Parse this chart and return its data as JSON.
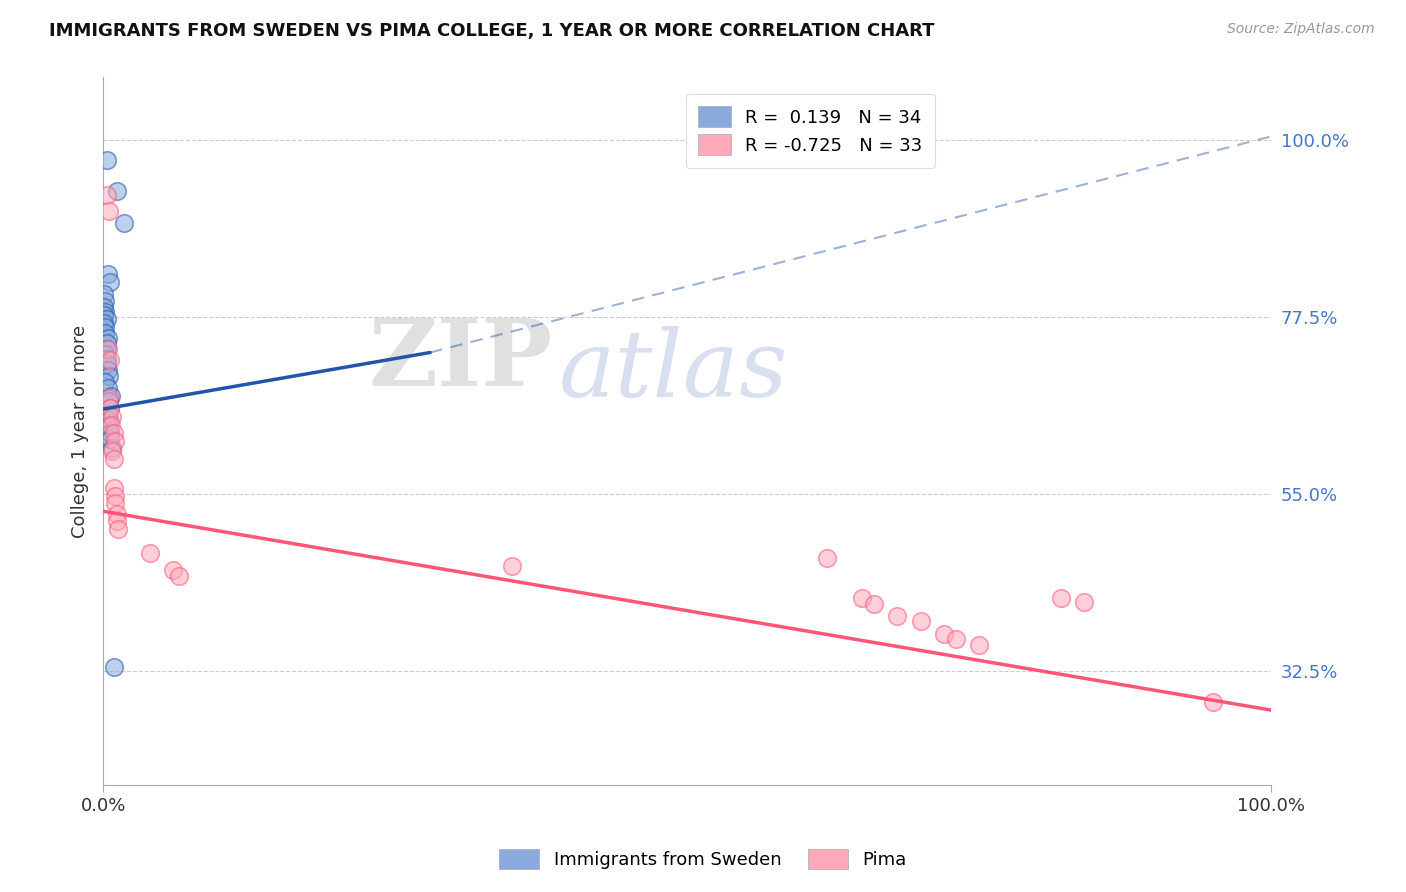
{
  "title": "IMMIGRANTS FROM SWEDEN VS PIMA COLLEGE, 1 YEAR OR MORE CORRELATION CHART",
  "source": "Source: ZipAtlas.com",
  "ylabel": "College, 1 year or more",
  "legend_blue_label": "R =  0.139   N = 34",
  "legend_pink_label": "R = -0.725   N = 33",
  "bottom_legend_blue": "Immigrants from Sweden",
  "bottom_legend_pink": "Pima",
  "blue_color": "#88AADD",
  "pink_color": "#FFAABB",
  "blue_line_color": "#2255AA",
  "pink_line_color": "#FF5577",
  "blue_scatter": [
    [
      0.003,
      0.975
    ],
    [
      0.012,
      0.935
    ],
    [
      0.018,
      0.895
    ],
    [
      0.004,
      0.83
    ],
    [
      0.006,
      0.82
    ],
    [
      0.001,
      0.805
    ],
    [
      0.002,
      0.795
    ],
    [
      0.001,
      0.788
    ],
    [
      0.002,
      0.782
    ],
    [
      0.001,
      0.778
    ],
    [
      0.003,
      0.772
    ],
    [
      0.001,
      0.768
    ],
    [
      0.002,
      0.762
    ],
    [
      0.002,
      0.755
    ],
    [
      0.004,
      0.748
    ],
    [
      0.003,
      0.742
    ],
    [
      0.003,
      0.735
    ],
    [
      0.002,
      0.728
    ],
    [
      0.003,
      0.722
    ],
    [
      0.003,
      0.715
    ],
    [
      0.004,
      0.708
    ],
    [
      0.005,
      0.7
    ],
    [
      0.002,
      0.692
    ],
    [
      0.004,
      0.685
    ],
    [
      0.007,
      0.675
    ],
    [
      0.005,
      0.668
    ],
    [
      0.006,
      0.66
    ],
    [
      0.004,
      0.652
    ],
    [
      0.005,
      0.644
    ],
    [
      0.005,
      0.636
    ],
    [
      0.006,
      0.628
    ],
    [
      0.006,
      0.62
    ],
    [
      0.008,
      0.608
    ],
    [
      0.009,
      0.33
    ]
  ],
  "pink_scatter": [
    [
      0.003,
      0.93
    ],
    [
      0.005,
      0.91
    ],
    [
      0.004,
      0.735
    ],
    [
      0.006,
      0.72
    ],
    [
      0.005,
      0.672
    ],
    [
      0.006,
      0.66
    ],
    [
      0.008,
      0.648
    ],
    [
      0.007,
      0.638
    ],
    [
      0.009,
      0.628
    ],
    [
      0.01,
      0.618
    ],
    [
      0.008,
      0.605
    ],
    [
      0.009,
      0.595
    ],
    [
      0.009,
      0.558
    ],
    [
      0.01,
      0.548
    ],
    [
      0.01,
      0.538
    ],
    [
      0.012,
      0.525
    ],
    [
      0.012,
      0.515
    ],
    [
      0.013,
      0.505
    ],
    [
      0.04,
      0.475
    ],
    [
      0.06,
      0.453
    ],
    [
      0.065,
      0.445
    ],
    [
      0.35,
      0.458
    ],
    [
      0.62,
      0.468
    ],
    [
      0.65,
      0.418
    ],
    [
      0.66,
      0.41
    ],
    [
      0.68,
      0.395
    ],
    [
      0.7,
      0.388
    ],
    [
      0.72,
      0.372
    ],
    [
      0.73,
      0.365
    ],
    [
      0.75,
      0.358
    ],
    [
      0.82,
      0.418
    ],
    [
      0.84,
      0.412
    ],
    [
      0.95,
      0.285
    ]
  ],
  "blue_line_solid": {
    "x": [
      0.0,
      0.28
    ],
    "y": [
      0.658,
      0.73
    ]
  },
  "blue_line_dash": {
    "x": [
      0.28,
      1.0
    ],
    "y": [
      0.73,
      1.005
    ]
  },
  "pink_line": {
    "x": [
      0.0,
      1.0
    ],
    "y": [
      0.528,
      0.275
    ]
  },
  "ytick_values": [
    0.325,
    0.55,
    0.775,
    1.0
  ],
  "ytick_labels": [
    "32.5%",
    "55.0%",
    "77.5%",
    "100.0%"
  ],
  "xlim": [
    0.0,
    1.0
  ],
  "ylim": [
    0.18,
    1.08
  ],
  "watermark_zip": "ZIP",
  "watermark_atlas": "atlas",
  "background_color": "#FFFFFF",
  "grid_color": "#CCCCCC"
}
